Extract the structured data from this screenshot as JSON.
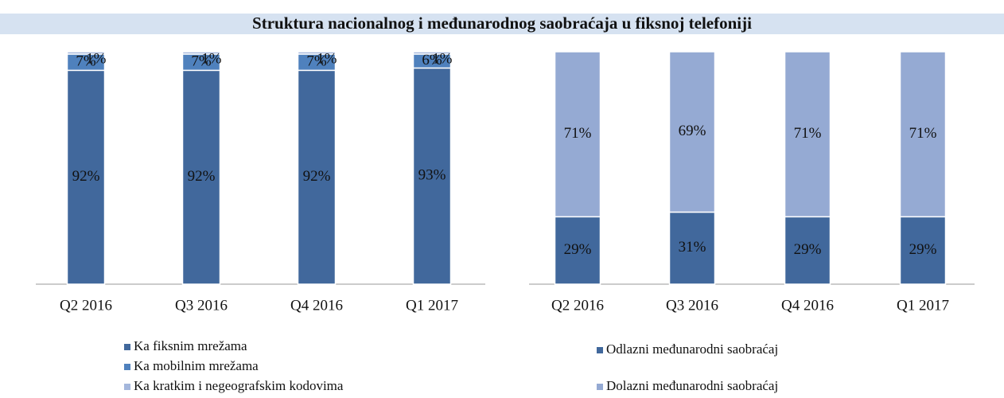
{
  "chart_data": [
    {
      "type": "stacked_bar",
      "title": "Struktura nacionalnog i međunarodnog saobraćaja u fiksnoj telefoniji",
      "categories": [
        "Q2 2016",
        "Q3 2016",
        "Q4 2016",
        "Q1 2017"
      ],
      "ylim": [
        0,
        100
      ],
      "series": [
        {
          "name": "Ka fiksnim mrežama",
          "color": "#41689c",
          "values": [
            92,
            92,
            92,
            93
          ],
          "value_labels": [
            "92%",
            "92%",
            "92%",
            "93%"
          ]
        },
        {
          "name": "Ka mobilnim mrežama",
          "color": "#4f81bd",
          "values": [
            7,
            7,
            7,
            6
          ],
          "value_labels": [
            "7%",
            "7%",
            "7%",
            "6%"
          ]
        },
        {
          "name": "Ka kratkim i negeografskim kodovima",
          "color": "#a4b7dc",
          "values": [
            1,
            1,
            1,
            1
          ],
          "value_labels": [
            "1%",
            "1%",
            "1%",
            "1%"
          ]
        }
      ]
    },
    {
      "type": "stacked_bar",
      "categories": [
        "Q2 2016",
        "Q3 2016",
        "Q4 2016",
        "Q1 2017"
      ],
      "ylim": [
        0,
        100
      ],
      "series": [
        {
          "name": "Odlazni međunarodni saobraćaj",
          "color": "#41689c",
          "values": [
            29,
            31,
            29,
            29
          ],
          "value_labels": [
            "29%",
            "31%",
            "29%",
            "29%"
          ]
        },
        {
          "name": "Dolazni međunarodni saobraćaj",
          "color": "#95aad3",
          "values": [
            71,
            69,
            71,
            71
          ],
          "value_labels": [
            "71%",
            "69%",
            "71%",
            "71%"
          ]
        }
      ]
    }
  ]
}
